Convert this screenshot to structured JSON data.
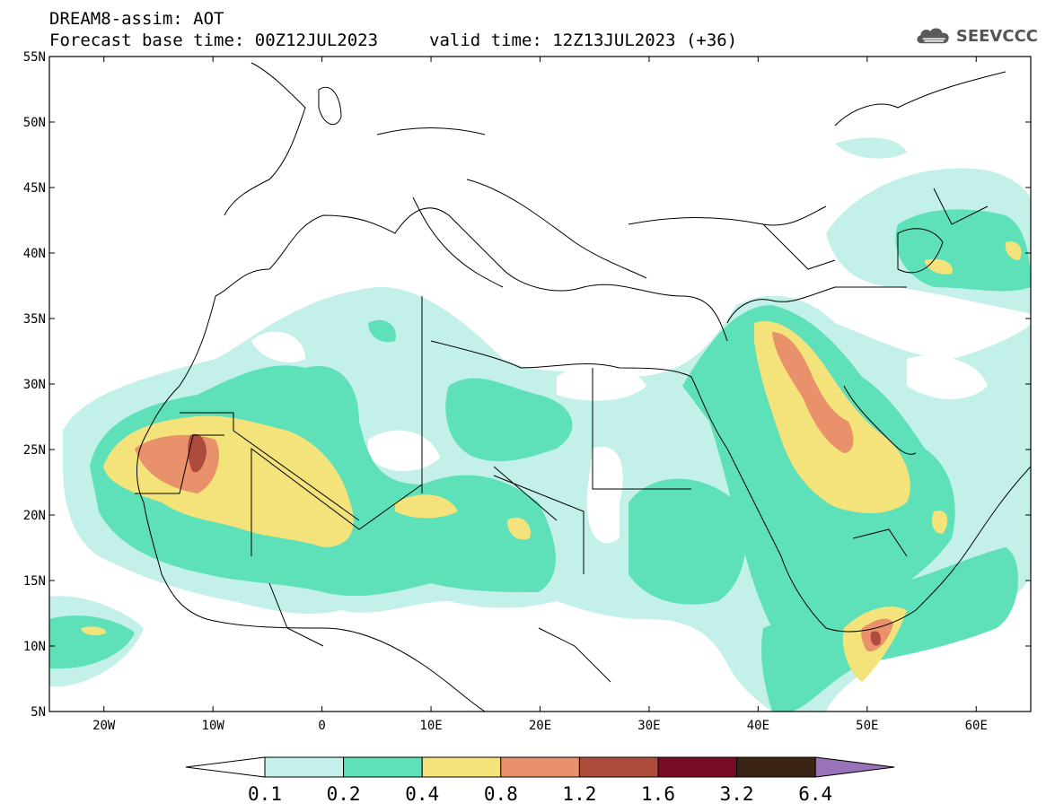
{
  "title": {
    "line1": "DREAM8-assim: AOT",
    "line2": "Forecast base time: 00Z12JUL2023",
    "valid": "valid time: 12Z13JUL2023 (+36)"
  },
  "logo": {
    "text": "SEEVCCC",
    "icon": "cloud-icon"
  },
  "map": {
    "lon_range": [
      -25,
      65
    ],
    "lat_range": [
      5,
      55
    ],
    "lat_ticks": [
      {
        "value": 55,
        "label": "55N"
      },
      {
        "value": 50,
        "label": "50N"
      },
      {
        "value": 45,
        "label": "45N"
      },
      {
        "value": 40,
        "label": "40N"
      },
      {
        "value": 35,
        "label": "35N"
      },
      {
        "value": 30,
        "label": "30N"
      },
      {
        "value": 25,
        "label": "25N"
      },
      {
        "value": 20,
        "label": "20N"
      },
      {
        "value": 15,
        "label": "15N"
      },
      {
        "value": 10,
        "label": "10N"
      },
      {
        "value": 5,
        "label": "5N"
      }
    ],
    "lon_ticks": [
      {
        "value": -20,
        "label": "20W"
      },
      {
        "value": -10,
        "label": "10W"
      },
      {
        "value": 0,
        "label": "0"
      },
      {
        "value": 10,
        "label": "10E"
      },
      {
        "value": 20,
        "label": "20E"
      },
      {
        "value": 30,
        "label": "30E"
      },
      {
        "value": 40,
        "label": "40E"
      },
      {
        "value": 50,
        "label": "50E"
      },
      {
        "value": 60,
        "label": "60E"
      }
    ]
  },
  "colorbar": {
    "labels": [
      "0.1",
      "0.2",
      "0.4",
      "0.8",
      "1.2",
      "1.6",
      "3.2",
      "6.4"
    ],
    "colors": [
      "#c4f0ea",
      "#5ee0b8",
      "#f3e37a",
      "#e8916a",
      "#ad4c3c",
      "#7a0b27",
      "#3b2414"
    ],
    "under_color": "#ffffff",
    "over_color": "#9a72b8"
  }
}
